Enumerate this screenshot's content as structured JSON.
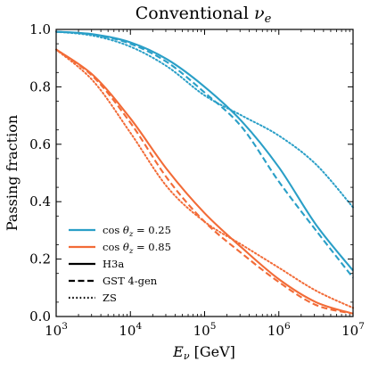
{
  "chart_data": {
    "type": "line",
    "title": "Conventional νe",
    "xlabel": "Eν [GeV]",
    "ylabel": "Passing fraction",
    "xscale": "log",
    "xlim": [
      1000,
      10000000
    ],
    "ylim": [
      0.0,
      1.0
    ],
    "x_ticks": [
      {
        "value": 1000,
        "base": "10",
        "exp": "3"
      },
      {
        "value": 10000,
        "base": "10",
        "exp": "4"
      },
      {
        "value": 100000,
        "base": "10",
        "exp": "5"
      },
      {
        "value": 1000000,
        "base": "10",
        "exp": "6"
      },
      {
        "value": 10000000,
        "base": "10",
        "exp": "7"
      }
    ],
    "y_ticks": [
      {
        "value": 0.0,
        "label": "0.0"
      },
      {
        "value": 0.2,
        "label": "0.2"
      },
      {
        "value": 0.4,
        "label": "0.4"
      },
      {
        "value": 0.6,
        "label": "0.6"
      },
      {
        "value": 0.8,
        "label": "0.8"
      },
      {
        "value": 1.0,
        "label": "1.0"
      }
    ],
    "grid": false,
    "legend_position": "bottom-left",
    "legend": {
      "colors": [
        {
          "label": "cos θz = 0.25",
          "color": "#2a9fc7"
        },
        {
          "label": "cos θz = 0.85",
          "color": "#f26b37"
        }
      ],
      "styles": [
        {
          "label": "H3a",
          "dash": "solid"
        },
        {
          "label": "GST 4-gen",
          "dash": "dashed"
        },
        {
          "label": "ZS",
          "dash": "dotted"
        }
      ]
    },
    "series": [
      {
        "zenith": "0.25",
        "model": "H3a",
        "color": "#2a9fc7",
        "dash": "solid",
        "x": [
          1000,
          3162,
          10000,
          31623,
          100000,
          316228,
          1000000,
          3162278,
          10000000
        ],
        "y": [
          0.992,
          0.983,
          0.955,
          0.895,
          0.8,
          0.68,
          0.52,
          0.32,
          0.16
        ]
      },
      {
        "zenith": "0.25",
        "model": "GST 4-gen",
        "color": "#2a9fc7",
        "dash": "dashed",
        "x": [
          1000,
          3162,
          10000,
          31623,
          100000,
          316228,
          1000000,
          3162278,
          10000000
        ],
        "y": [
          0.992,
          0.982,
          0.95,
          0.885,
          0.78,
          0.66,
          0.47,
          0.3,
          0.135
        ]
      },
      {
        "zenith": "0.25",
        "model": "ZS",
        "color": "#2a9fc7",
        "dash": "dotted",
        "x": [
          1000,
          3162,
          10000,
          31623,
          100000,
          316228,
          1000000,
          3162278,
          10000000
        ],
        "y": [
          0.992,
          0.978,
          0.94,
          0.87,
          0.77,
          0.7,
          0.63,
          0.53,
          0.38
        ]
      },
      {
        "zenith": "0.85",
        "model": "H3a",
        "color": "#f26b37",
        "dash": "solid",
        "x": [
          1000,
          3162,
          10000,
          31623,
          100000,
          316228,
          1000000,
          3162278,
          10000000
        ],
        "y": [
          0.93,
          0.84,
          0.69,
          0.51,
          0.36,
          0.24,
          0.13,
          0.05,
          0.01
        ]
      },
      {
        "zenith": "0.85",
        "model": "GST 4-gen",
        "color": "#f26b37",
        "dash": "dashed",
        "x": [
          1000,
          3162,
          10000,
          31623,
          100000,
          316228,
          1000000,
          3162278,
          10000000
        ],
        "y": [
          0.93,
          0.835,
          0.675,
          0.48,
          0.33,
          0.22,
          0.12,
          0.04,
          0.01
        ]
      },
      {
        "zenith": "0.85",
        "model": "ZS",
        "color": "#f26b37",
        "dash": "dotted",
        "x": [
          1000,
          3162,
          10000,
          31623,
          100000,
          316228,
          1000000,
          3162278,
          10000000
        ],
        "y": [
          0.93,
          0.82,
          0.64,
          0.45,
          0.33,
          0.25,
          0.17,
          0.09,
          0.03
        ]
      }
    ]
  }
}
